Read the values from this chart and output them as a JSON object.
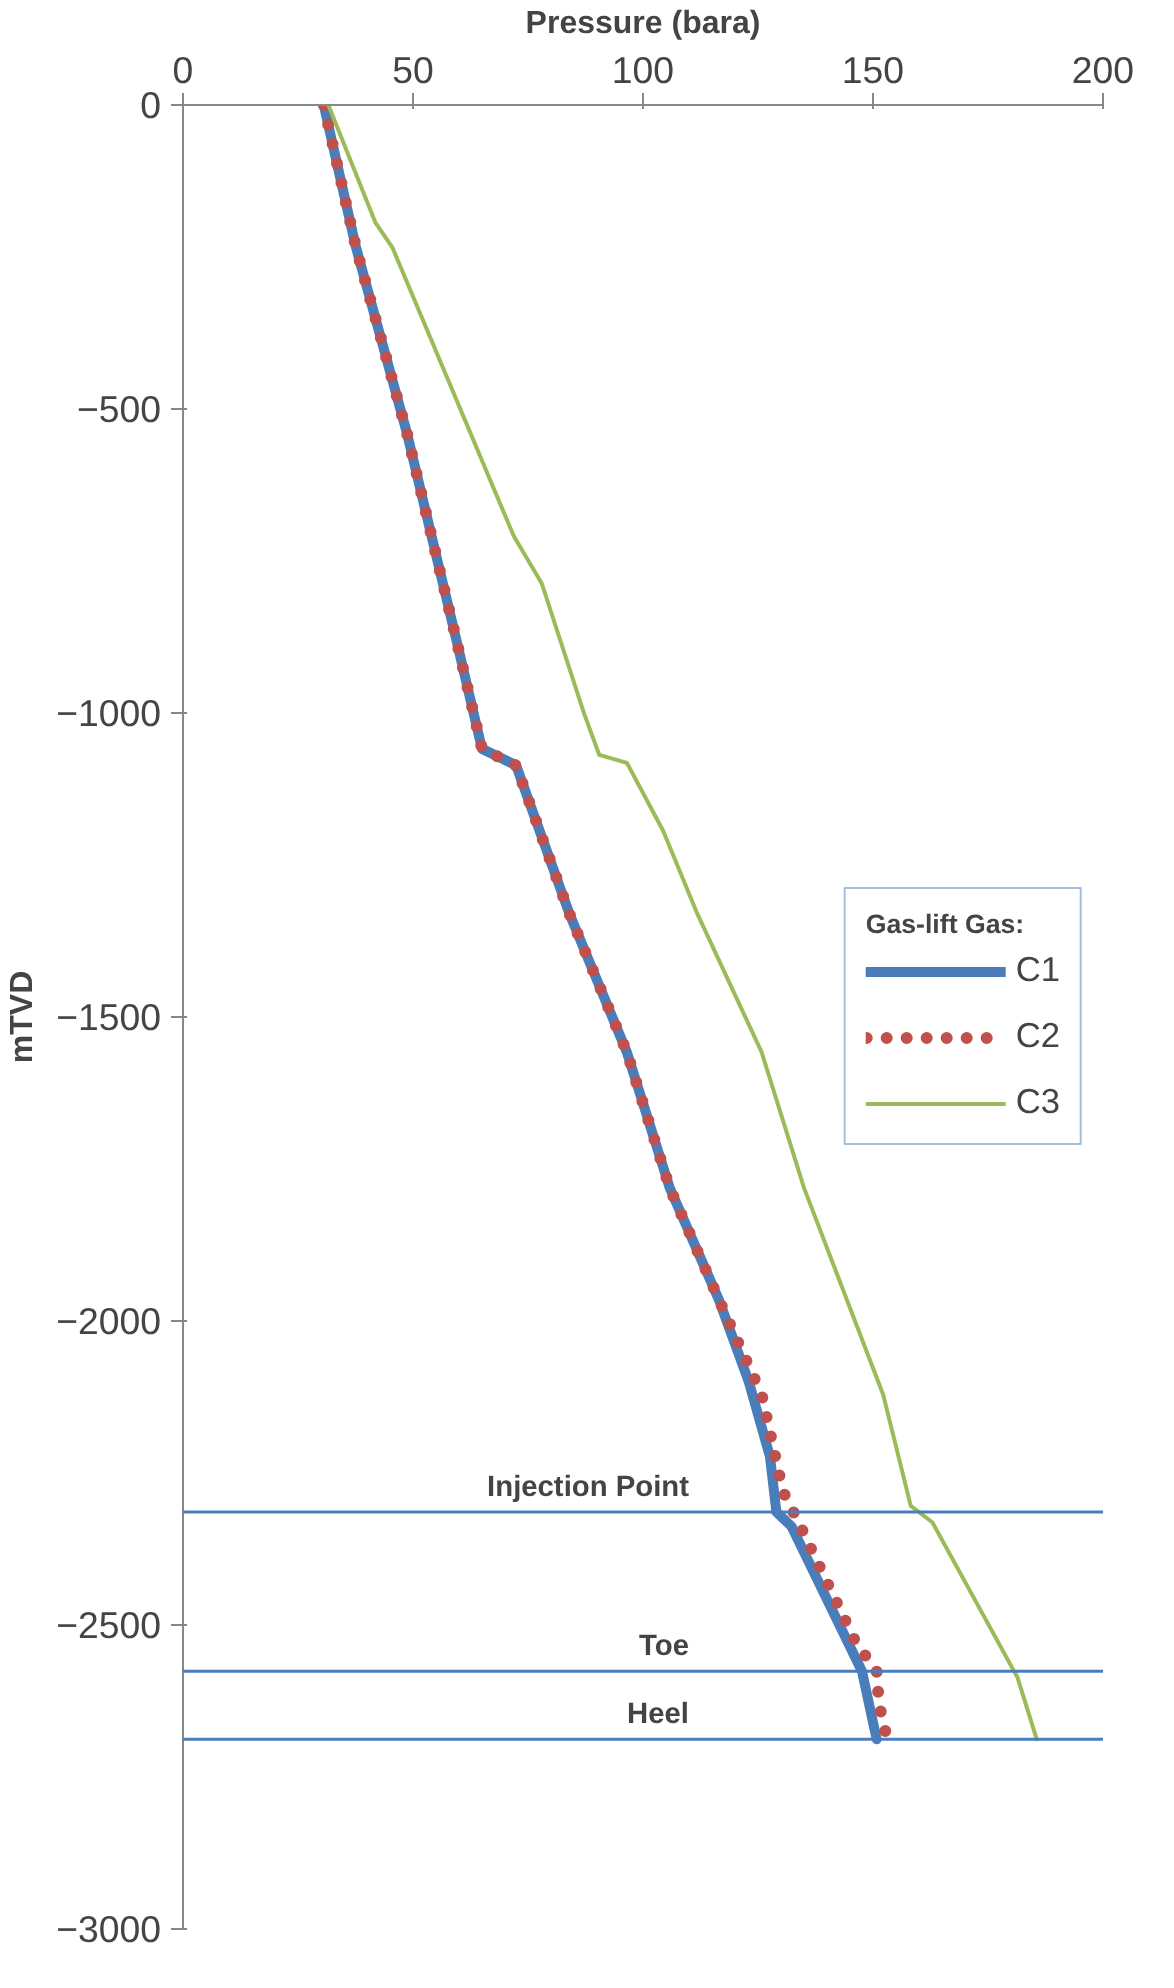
{
  "chart_data": {
    "type": "line",
    "xlabel": "Pressure (bara)",
    "ylabel": "mTVD",
    "legend_title": "Gas-lift Gas:",
    "xlim": [
      0,
      200
    ],
    "ylim": [
      -3000,
      0
    ],
    "xticks": [
      0,
      50,
      100,
      150,
      200
    ],
    "yticks": [
      -3000,
      -2500,
      -2000,
      -1500,
      -1000,
      -500,
      0
    ],
    "grid": false,
    "legend": "right",
    "marker": "none",
    "series": [
      {
        "name": "C1",
        "color": "#4a7ebb",
        "line_style": "solid",
        "x": [
          30.6,
          37.6,
          48.7,
          59.4,
          65.0,
          72.4,
          84.0,
          96.5,
          105.8,
          116.5,
          123.0,
          127.6,
          129.0,
          132.3,
          147.6,
          150.8
        ],
        "values": [
          0,
          -234,
          -540,
          -879,
          -1059,
          -1086,
          -1330,
          -1558,
          -1781,
          -1965,
          -2100,
          -2223,
          -2314,
          -2338,
          -2576,
          -2688
        ]
      },
      {
        "name": "C2",
        "color": "#c0504d",
        "line_style": "dotted",
        "x": [
          30.6,
          37.6,
          48.7,
          59.4,
          65.0,
          72.4,
          84.0,
          96.5,
          105.8,
          116.5,
          125.8,
          130.4,
          133.6,
          146.2,
          150.8,
          151.3,
          153.1
        ],
        "values": [
          0,
          -234,
          -540,
          -879,
          -1059,
          -1086,
          -1330,
          -1558,
          -1781,
          -1965,
          -2121,
          -2280,
          -2328,
          -2528,
          -2576,
          -2630,
          -2688
        ]
      },
      {
        "name": "C3",
        "color": "#9bbb59",
        "line_style": "solid",
        "x": [
          31.6,
          41.8,
          45.5,
          71.9,
          78.0,
          87.2,
          90.5,
          96.5,
          104.4,
          111.8,
          125.8,
          135.0,
          152.2,
          158.2,
          162.9,
          181.4,
          185.6
        ],
        "values": [
          0,
          -193,
          -234,
          -709,
          -787,
          -1001,
          -1069,
          -1082,
          -1194,
          -1330,
          -1558,
          -1781,
          -2121,
          -2304,
          -2331,
          -2586,
          -2688
        ]
      }
    ],
    "ref_lines": [
      {
        "axis": "y",
        "value": -2314,
        "label": "Injection Point",
        "color": "#4a7ebb"
      },
      {
        "axis": "y",
        "value": -2576,
        "label": "Toe",
        "color": "#4a7ebb"
      },
      {
        "axis": "y",
        "value": -2688,
        "label": "Heel",
        "color": "#4a7ebb"
      }
    ]
  }
}
